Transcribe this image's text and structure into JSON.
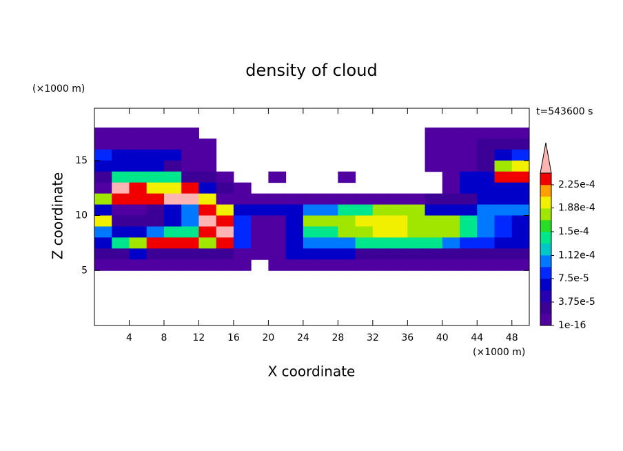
{
  "chart_data": {
    "type": "contour",
    "title": "density of cloud",
    "y_unit": "(×1000 m)",
    "x_unit": "(×1000 m)",
    "time_label": "t=543600 s",
    "xlabel": "X coordinate",
    "ylabel": "Z coordinate",
    "xlim": [
      0,
      50
    ],
    "ylim": [
      0,
      19.75
    ],
    "xticks": [
      4,
      8,
      12,
      16,
      20,
      24,
      28,
      32,
      36,
      40,
      44,
      48
    ],
    "yticks": [
      5,
      10,
      15
    ],
    "x": [
      1,
      3,
      5,
      7,
      9,
      11,
      13,
      15,
      17,
      19,
      21,
      23,
      25,
      27,
      29,
      31,
      33,
      35,
      37,
      39,
      41,
      43,
      45,
      47,
      49
    ],
    "y": [
      17.5,
      16.5,
      15.5,
      14.5,
      13.5,
      12.5,
      11.5,
      10.5,
      9.5,
      8.5,
      7.5,
      6.5,
      5.5
    ],
    "z": [
      [
        1e-05,
        1e-05,
        1e-05,
        1e-05,
        1e-05,
        1e-05,
        null,
        null,
        null,
        null,
        null,
        null,
        null,
        null,
        null,
        null,
        null,
        null,
        null,
        1e-05,
        1e-05,
        1e-05,
        1e-05,
        1e-05,
        1e-05
      ],
      [
        1e-05,
        1e-05,
        1e-05,
        1e-05,
        1e-05,
        1e-05,
        1e-05,
        null,
        null,
        null,
        null,
        null,
        null,
        null,
        null,
        null,
        null,
        null,
        null,
        1e-05,
        1e-05,
        1e-05,
        3e-05,
        3e-05,
        3e-05
      ],
      [
        9e-05,
        6e-05,
        6e-05,
        6e-05,
        6e-05,
        1e-05,
        1e-05,
        null,
        null,
        null,
        null,
        null,
        null,
        null,
        null,
        null,
        null,
        null,
        null,
        1e-05,
        1e-05,
        1e-05,
        3e-05,
        6e-05,
        9e-05
      ],
      [
        6e-05,
        6e-05,
        6e-05,
        6e-05,
        3e-05,
        1e-05,
        1e-05,
        null,
        null,
        null,
        null,
        null,
        null,
        null,
        null,
        null,
        null,
        null,
        null,
        1e-05,
        1e-05,
        1e-05,
        3e-05,
        0.00017,
        0.0002
      ],
      [
        3e-05,
        0.00014,
        0.00014,
        0.00014,
        0.00014,
        3e-05,
        3e-05,
        1e-05,
        null,
        null,
        1e-05,
        null,
        null,
        null,
        1e-05,
        null,
        null,
        null,
        null,
        null,
        1e-05,
        6e-05,
        6e-05,
        0.00023,
        0.00023
      ],
      [
        1e-05,
        0.00025,
        0.00023,
        0.0002,
        0.0002,
        0.00023,
        6e-05,
        3e-05,
        1e-05,
        null,
        null,
        null,
        null,
        null,
        null,
        null,
        null,
        null,
        null,
        null,
        1e-05,
        6e-05,
        6e-05,
        6e-05,
        6e-05
      ],
      [
        0.00017,
        0.00023,
        0.00023,
        0.00023,
        0.00025,
        0.00025,
        0.0002,
        1e-05,
        1e-05,
        1e-05,
        1e-05,
        1e-05,
        1e-05,
        1e-05,
        1e-05,
        1e-05,
        1e-05,
        1e-05,
        1e-05,
        3e-05,
        3e-05,
        3e-05,
        6e-05,
        6e-05,
        6e-05
      ],
      [
        6e-05,
        1e-05,
        1e-05,
        3e-05,
        6e-05,
        0.00011,
        0.00023,
        0.0002,
        6e-05,
        6e-05,
        6e-05,
        6e-05,
        0.00011,
        0.00011,
        0.00014,
        0.00014,
        0.00017,
        0.00017,
        0.00017,
        6e-05,
        6e-05,
        6e-05,
        0.00011,
        0.00011,
        0.00011
      ],
      [
        0.0002,
        3e-05,
        3e-05,
        3e-05,
        6e-05,
        0.00011,
        0.00025,
        0.00023,
        9e-05,
        1e-05,
        1e-05,
        6e-05,
        0.00017,
        0.00017,
        0.00017,
        0.0002,
        0.0002,
        0.0002,
        0.00017,
        0.00017,
        0.00017,
        0.00014,
        0.00011,
        9e-05,
        6e-05
      ],
      [
        0.00011,
        6e-05,
        6e-05,
        0.00011,
        0.00014,
        0.00014,
        0.00023,
        0.00025,
        9e-05,
        1e-05,
        1e-05,
        6e-05,
        0.00014,
        0.00014,
        0.00017,
        0.00017,
        0.0002,
        0.0002,
        0.00017,
        0.00017,
        0.00017,
        0.00014,
        0.00011,
        9e-05,
        6e-05
      ],
      [
        6e-05,
        0.00014,
        0.00017,
        0.00023,
        0.00023,
        0.00023,
        0.00017,
        0.00023,
        9e-05,
        1e-05,
        1e-05,
        6e-05,
        0.00011,
        0.00011,
        0.00011,
        0.00014,
        0.00014,
        0.00014,
        0.00014,
        0.00014,
        0.00011,
        9e-05,
        9e-05,
        6e-05,
        6e-05
      ],
      [
        3e-05,
        3e-05,
        6e-05,
        3e-05,
        3e-05,
        3e-05,
        3e-05,
        3e-05,
        1e-05,
        1e-05,
        1e-05,
        6e-05,
        6e-05,
        6e-05,
        6e-05,
        3e-05,
        3e-05,
        3e-05,
        3e-05,
        3e-05,
        3e-05,
        3e-05,
        3e-05,
        3e-05,
        3e-05
      ],
      [
        1e-05,
        1e-05,
        1e-05,
        1e-05,
        1e-05,
        1e-05,
        1e-05,
        1e-05,
        1e-05,
        null,
        1e-05,
        1e-05,
        1e-05,
        1e-05,
        1e-05,
        1e-05,
        1e-05,
        1e-05,
        1e-05,
        1e-05,
        1e-05,
        1e-05,
        1e-05,
        1e-05,
        1e-05
      ]
    ],
    "clim": [
      1e-16,
      0.00024375
    ],
    "colors": [
      "#5000a0",
      "#3c0096",
      "#2800b4",
      "#0000c8",
      "#0028ff",
      "#0078ff",
      "#00c8c8",
      "#00e68c",
      "#28dc28",
      "#a0e600",
      "#f0f000",
      "#ffa000",
      "#f00000"
    ],
    "extend_color": "#ffb4b4",
    "cticks": [
      1e-16,
      {
        "value": 3.75e-05,
        "label": "3.75e-5"
      },
      {
        "value": 7.5e-05,
        "label": "7.5e-5"
      },
      {
        "value": 0.000112,
        "label": "1.12e-4"
      },
      {
        "value": 0.00015,
        "label": "1.5e-4"
      },
      {
        "value": 0.000188,
        "label": "1.88e-4"
      },
      {
        "value": 0.000225,
        "label": "2.25e-4"
      }
    ]
  }
}
